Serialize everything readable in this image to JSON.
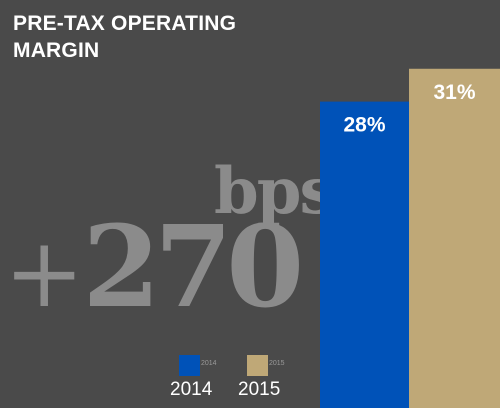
{
  "title": "PRE-TAX OPERATING MARGIN",
  "callout": {
    "value": "270",
    "sign": "+",
    "unit": "bps"
  },
  "chart_data": {
    "type": "bar",
    "title": "PRE-TAX OPERATING MARGIN",
    "categories": [
      "2014",
      "2015"
    ],
    "values": [
      28,
      31
    ],
    "data_labels": [
      "28%",
      "31%"
    ],
    "colors": [
      "#0052b8",
      "#bfa877"
    ],
    "ylim": [
      0,
      35
    ],
    "grid": false,
    "legend": {
      "placement": "bottom",
      "entries": [
        {
          "label": "2014",
          "color": "#0052b8",
          "swatch_text": "2014"
        },
        {
          "label": "2015",
          "color": "#bfa877",
          "swatch_text": "2015"
        }
      ]
    }
  }
}
